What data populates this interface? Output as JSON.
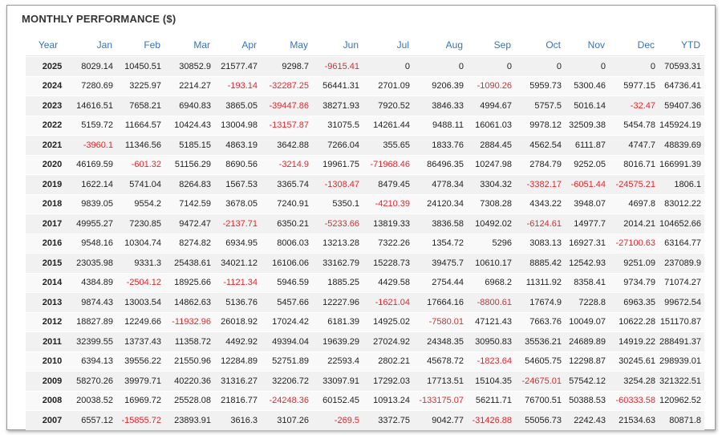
{
  "title": "MONTHLY PERFORMANCE ($)",
  "colors": {
    "header_text": "#3a72b4",
    "negative": "#e0282d",
    "row_odd": "#f1f1f1",
    "row_even": "#f9f9f9"
  },
  "columns": [
    "Year",
    "Jan",
    "Feb",
    "Mar",
    "Apr",
    "May",
    "Jun",
    "Jul",
    "Aug",
    "Sep",
    "Oct",
    "Nov",
    "Dec",
    "YTD"
  ],
  "rows": [
    [
      "2025",
      "8029.14",
      "10450.51",
      "30852.9",
      "21577.47",
      "9298.7",
      "-9615.41",
      "0",
      "0",
      "0",
      "0",
      "0",
      "0",
      "70593.31"
    ],
    [
      "2024",
      "7280.69",
      "3225.97",
      "2214.27",
      "-193.14",
      "-32287.25",
      "56441.31",
      "2701.09",
      "9206.39",
      "-1090.26",
      "5959.73",
      "5300.46",
      "5977.15",
      "64736.41"
    ],
    [
      "2023",
      "14616.51",
      "7658.21",
      "6940.83",
      "3865.05",
      "-39447.86",
      "38271.93",
      "7920.52",
      "3846.33",
      "4994.67",
      "5757.5",
      "5016.14",
      "-32.47",
      "59407.36"
    ],
    [
      "2022",
      "5159.72",
      "11664.57",
      "10424.43",
      "13004.98",
      "-13157.87",
      "31075.5",
      "14261.44",
      "9488.11",
      "16061.03",
      "9978.12",
      "32509.38",
      "5454.78",
      "145924.19"
    ],
    [
      "2021",
      "-3960.1",
      "11346.56",
      "5185.15",
      "4863.19",
      "3642.88",
      "7266.04",
      "355.65",
      "1833.76",
      "2884.45",
      "4562.54",
      "6111.87",
      "4747.7",
      "48839.69"
    ],
    [
      "2020",
      "46169.59",
      "-601.32",
      "51156.29",
      "8690.56",
      "-3214.9",
      "19961.75",
      "-71968.46",
      "86496.35",
      "10247.98",
      "2784.79",
      "9252.05",
      "8016.71",
      "166991.39"
    ],
    [
      "2019",
      "1622.14",
      "5741.04",
      "8264.83",
      "1567.53",
      "3365.74",
      "-1308.47",
      "8479.45",
      "4778.34",
      "3304.32",
      "-3382.17",
      "-6051.44",
      "-24575.21",
      "1806.1"
    ],
    [
      "2018",
      "9839.05",
      "9554.2",
      "7142.59",
      "3678.05",
      "7240.91",
      "5350.1",
      "-4210.39",
      "24120.34",
      "7308.28",
      "4343.22",
      "3948.07",
      "4697.8",
      "83012.22"
    ],
    [
      "2017",
      "49955.27",
      "7230.85",
      "9472.47",
      "-2137.71",
      "6350.21",
      "-5233.66",
      "13819.33",
      "3836.58",
      "10492.02",
      "-6124.61",
      "14977.7",
      "2014.21",
      "104652.66"
    ],
    [
      "2016",
      "9548.16",
      "10304.74",
      "8274.82",
      "6934.95",
      "8006.03",
      "13213.28",
      "7322.26",
      "1354.72",
      "5296",
      "3083.13",
      "16927.31",
      "-27100.63",
      "63164.77"
    ],
    [
      "2015",
      "23035.98",
      "9331.3",
      "25438.61",
      "34021.12",
      "16106.06",
      "33162.79",
      "15228.73",
      "39475.7",
      "10610.17",
      "8885.42",
      "12542.93",
      "9251.09",
      "237089.9"
    ],
    [
      "2014",
      "4384.89",
      "-2504.12",
      "18925.66",
      "-1121.34",
      "5946.59",
      "1885.25",
      "4429.58",
      "2754.44",
      "6968.2",
      "11311.92",
      "8358.41",
      "9734.79",
      "71074.27"
    ],
    [
      "2013",
      "9874.43",
      "13003.54",
      "14862.63",
      "5136.76",
      "5457.66",
      "12227.96",
      "-1621.04",
      "17664.16",
      "-8800.61",
      "17674.9",
      "7228.8",
      "6963.35",
      "99672.54"
    ],
    [
      "2012",
      "18827.89",
      "12249.66",
      "-11932.96",
      "26018.92",
      "17024.42",
      "6181.39",
      "14925.02",
      "-7580.01",
      "47121.43",
      "7663.76",
      "10049.07",
      "10622.28",
      "151170.87"
    ],
    [
      "2011",
      "32399.55",
      "13737.43",
      "11358.72",
      "4492.92",
      "49394.04",
      "19639.29",
      "27024.92",
      "24348.35",
      "30950.83",
      "35536.21",
      "24689.89",
      "14919.22",
      "288491.37"
    ],
    [
      "2010",
      "6394.13",
      "39556.22",
      "21550.96",
      "12284.89",
      "52751.89",
      "22593.4",
      "2802.21",
      "45678.72",
      "-1823.64",
      "54605.75",
      "12298.87",
      "30245.61",
      "298939.01"
    ],
    [
      "2009",
      "58270.26",
      "39979.71",
      "40220.36",
      "31316.27",
      "32206.72",
      "33097.91",
      "17292.03",
      "17713.51",
      "15104.35",
      "-24675.01",
      "57542.12",
      "3254.28",
      "321322.51"
    ],
    [
      "2008",
      "20038.52",
      "16969.72",
      "25528.08",
      "21816.77",
      "-24248.36",
      "60152.45",
      "10913.24",
      "-133175.07",
      "56211.71",
      "76700.51",
      "50388.53",
      "-60333.58",
      "120962.52"
    ],
    [
      "2007",
      "6557.12",
      "-15855.72",
      "23893.91",
      "3616.3",
      "3107.26",
      "-269.5",
      "3372.75",
      "9042.77",
      "-31426.88",
      "55056.73",
      "2242.43",
      "21534.63",
      "80871.8"
    ]
  ]
}
